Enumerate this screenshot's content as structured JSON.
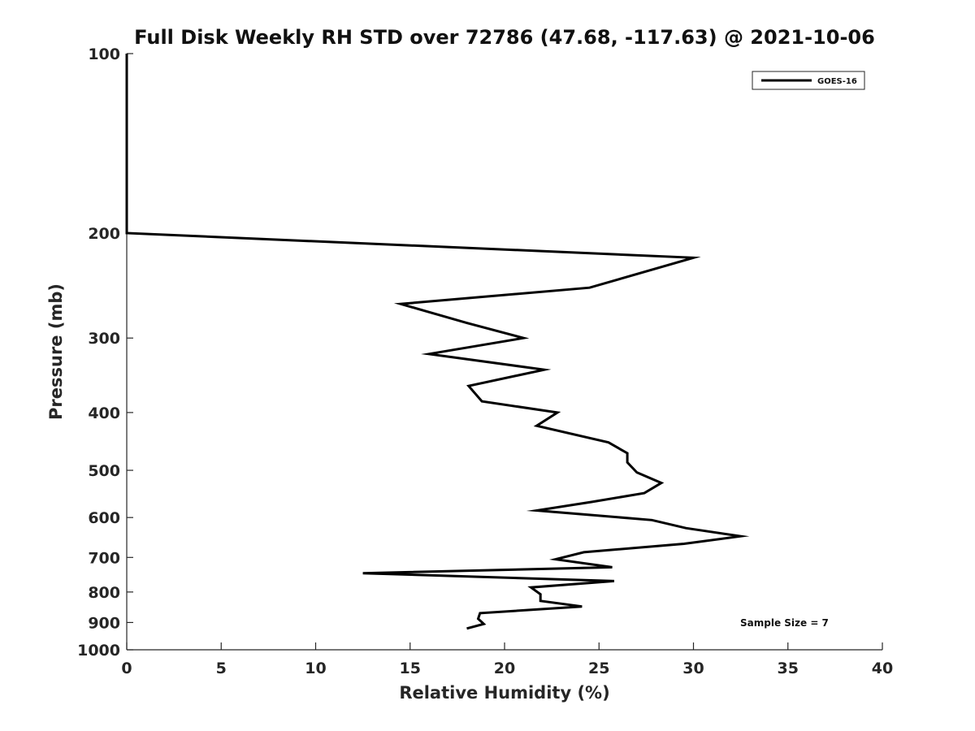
{
  "chart_data": {
    "type": "line",
    "title": "Full Disk Weekly RH STD over 72786 (47.68, -117.63) @ 2021-10-06",
    "xlabel": "Relative Humidity (%)",
    "ylabel": "Pressure (mb)",
    "xlim": [
      0,
      40
    ],
    "ylim": [
      100,
      1000
    ],
    "yscale": "log",
    "y_reversed": true,
    "x_ticks": [
      0,
      5,
      10,
      15,
      20,
      25,
      30,
      35,
      40
    ],
    "y_ticks": [
      100,
      200,
      300,
      400,
      500,
      600,
      700,
      800,
      900,
      1000
    ],
    "grid": false,
    "legend_position": "top-right",
    "annotation": "Sample Size = 7",
    "series": [
      {
        "name": "GOES-16",
        "color": "#000000",
        "points": [
          [
            0,
            100
          ],
          [
            0,
            150
          ],
          [
            0,
            200
          ],
          [
            30.0,
            220
          ],
          [
            24.5,
            247
          ],
          [
            14.5,
            263
          ],
          [
            18.0,
            283
          ],
          [
            21.0,
            300
          ],
          [
            16.0,
            319
          ],
          [
            22.1,
            339
          ],
          [
            18.1,
            361
          ],
          [
            18.8,
            383
          ],
          [
            22.8,
            400
          ],
          [
            21.7,
            421
          ],
          [
            25.5,
            449
          ],
          [
            26.5,
            468
          ],
          [
            26.5,
            485
          ],
          [
            27.0,
            504
          ],
          [
            28.3,
            525
          ],
          [
            27.4,
            546
          ],
          [
            24.6,
            565
          ],
          [
            21.7,
            584
          ],
          [
            27.8,
            606
          ],
          [
            29.6,
            625
          ],
          [
            32.5,
            645
          ],
          [
            29.5,
            664
          ],
          [
            24.2,
            686
          ],
          [
            22.7,
            705
          ],
          [
            25.7,
            727
          ],
          [
            12.5,
            744
          ],
          [
            25.8,
            767
          ],
          [
            21.4,
            786
          ],
          [
            21.9,
            807
          ],
          [
            21.9,
            828
          ],
          [
            24.1,
            846
          ],
          [
            18.7,
            868
          ],
          [
            18.6,
            887
          ],
          [
            18.9,
            905
          ],
          [
            18.0,
            921
          ]
        ]
      }
    ]
  }
}
